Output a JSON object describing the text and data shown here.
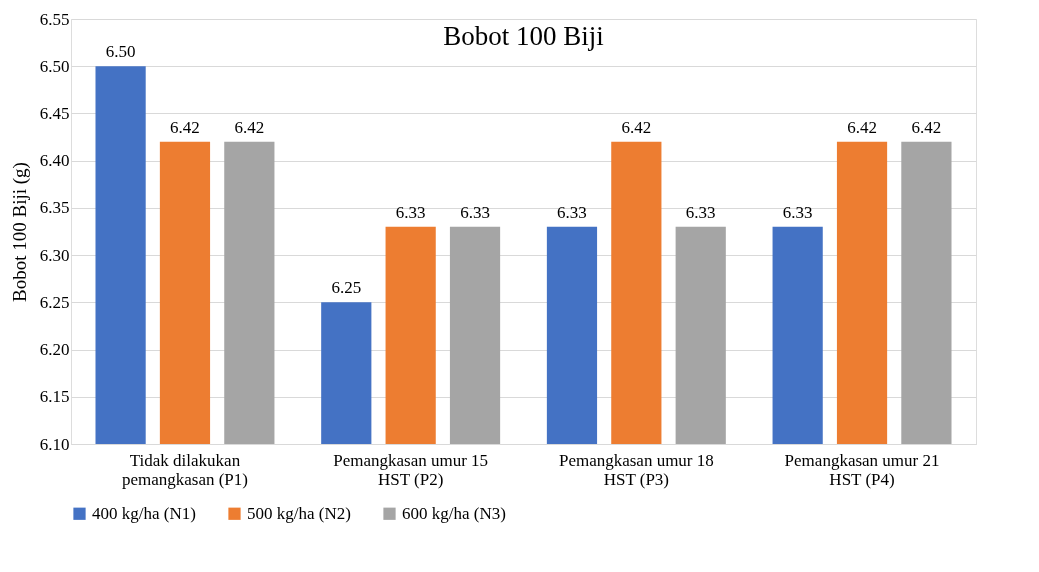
{
  "chart_data": {
    "type": "bar",
    "title": "Bobot 100 Biji",
    "ylabel": "Bobot 100 Biji (g)",
    "categories": [
      "Tidak dilakukan\npemangkasan (P1)",
      "Pemangkasan umur 15\nHST (P2)",
      "Pemangkasan umur 18\nHST (P3)",
      "Pemangkasan umur 21\nHST (P4)"
    ],
    "series": [
      {
        "name": "400 kg/ha (N1)",
        "color": "#4472c4",
        "values": [
          6.5,
          6.25,
          6.33,
          6.33
        ],
        "value_labels": [
          "6.50",
          "6.25",
          "6.33",
          "6.33"
        ]
      },
      {
        "name": "500 kg/ha (N2)",
        "color": "#ed7d31",
        "values": [
          6.42,
          6.33,
          6.42,
          6.42
        ],
        "value_labels": [
          "6.42",
          "6.33",
          "6.42",
          "6.42"
        ]
      },
      {
        "name": "600 kg/ha (N3)",
        "color": "#a5a5a5",
        "values": [
          6.42,
          6.33,
          6.33,
          6.42
        ],
        "value_labels": [
          "6.42",
          "6.33",
          "6.33",
          "6.42"
        ]
      }
    ],
    "ylim": [
      6.1,
      6.55
    ],
    "yticks": [
      {
        "value": 6.1,
        "label": "6.10"
      },
      {
        "value": 6.15,
        "label": "6.15"
      },
      {
        "value": 6.2,
        "label": "6.20"
      },
      {
        "value": 6.25,
        "label": "6.25"
      },
      {
        "value": 6.3,
        "label": "6.30"
      },
      {
        "value": 6.35,
        "label": "6.35"
      },
      {
        "value": 6.4,
        "label": "6.40"
      },
      {
        "value": 6.45,
        "label": "6.45"
      },
      {
        "value": 6.5,
        "label": "6.50"
      },
      {
        "value": 6.55,
        "label": "6.55"
      }
    ],
    "grid": "y",
    "legend": "bottom"
  }
}
